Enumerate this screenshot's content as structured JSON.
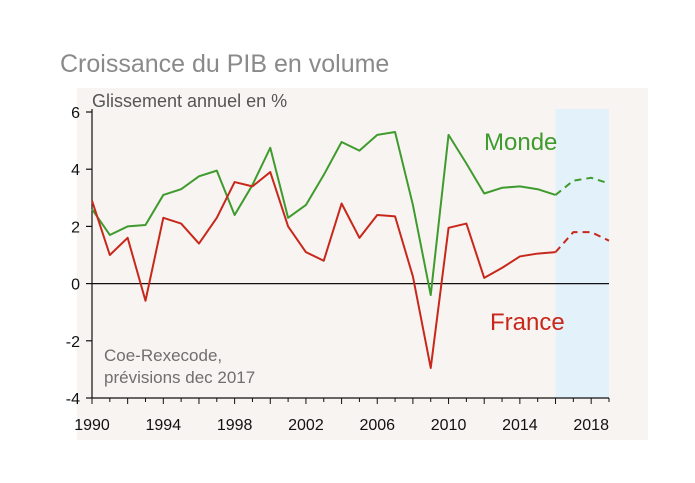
{
  "title": "Croissance du PIB en volume",
  "chart_data": {
    "type": "line",
    "title": "Croissance du PIB en volume",
    "subtitle": "Glissement annuel en %",
    "source": [
      "Coe-Rexecode,",
      "prévisions dec 2017"
    ],
    "xlim": [
      1990,
      2019
    ],
    "ylim": [
      -4,
      6
    ],
    "y_ticks": [
      -4,
      -2,
      0,
      2,
      4,
      6
    ],
    "x_ticks": [
      1990,
      1994,
      1998,
      2002,
      2006,
      2010,
      2014,
      2018
    ],
    "forecast_period": [
      2016,
      2019
    ],
    "forecast_color": "#e3f2fa",
    "plot_background": "#f8f4f1",
    "series": [
      {
        "name": "Monde",
        "color": "#3f9b2e",
        "x": [
          1990,
          1991,
          1992,
          1993,
          1994,
          1995,
          1996,
          1997,
          1998,
          1999,
          2000,
          2001,
          2002,
          2003,
          2004,
          2005,
          2006,
          2007,
          2008,
          2009,
          2010,
          2011,
          2012,
          2013,
          2014,
          2015,
          2016,
          2017,
          2018,
          2019
        ],
        "values": [
          2.6,
          1.7,
          2.0,
          2.05,
          3.1,
          3.3,
          3.75,
          3.95,
          2.4,
          3.45,
          4.75,
          2.3,
          2.75,
          3.8,
          4.95,
          4.65,
          5.2,
          5.3,
          2.75,
          -0.4,
          5.2,
          4.2,
          3.15,
          3.35,
          3.4,
          3.3,
          3.1,
          3.6,
          3.7,
          3.5
        ],
        "forecast_from": 2016
      },
      {
        "name": "France",
        "color": "#c8281c",
        "x": [
          1990,
          1991,
          1992,
          1993,
          1994,
          1995,
          1996,
          1997,
          1998,
          1999,
          2000,
          2001,
          2002,
          2003,
          2004,
          2005,
          2006,
          2007,
          2008,
          2009,
          2010,
          2011,
          2012,
          2013,
          2014,
          2015,
          2016,
          2017,
          2018,
          2019
        ],
        "values": [
          2.9,
          1.0,
          1.6,
          -0.6,
          2.3,
          2.1,
          1.4,
          2.3,
          3.55,
          3.4,
          3.9,
          2.0,
          1.1,
          0.8,
          2.8,
          1.6,
          2.4,
          2.35,
          0.25,
          -2.95,
          1.95,
          2.1,
          0.2,
          0.55,
          0.95,
          1.05,
          1.1,
          1.8,
          1.8,
          1.5
        ],
        "forecast_from": 2016
      }
    ]
  }
}
